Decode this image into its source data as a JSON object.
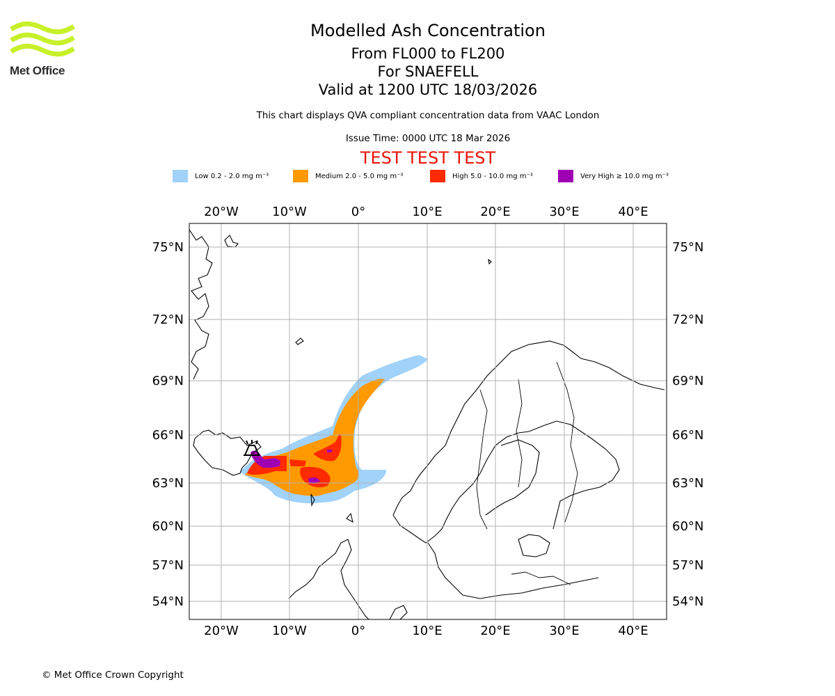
{
  "header": {
    "title": "Modelled Ash Concentration",
    "level_range": "From FL000 to FL200",
    "volcano": "For SNAEFELL",
    "valid_time": "Valid at 1200 UTC 18/03/2026",
    "subtitle": "This chart displays QVA compliant concentration data from VAAC London",
    "issue_time": "Issue Time: 0000 UTC 18 Mar 2026",
    "test_banner": "TEST TEST TEST"
  },
  "logo": {
    "text": "Met Office",
    "color": "#c8f02a"
  },
  "legend": [
    {
      "label": "Low 0.2 - 2.0 mg m⁻³",
      "color": "#a0d2fa"
    },
    {
      "label": "Medium 2.0 - 5.0 mg m⁻³",
      "color": "#ff9900"
    },
    {
      "label": "High 5.0 - 10.0 mg m⁻³",
      "color": "#ff2a00"
    },
    {
      "label": "Very High  ≥  10.0 mg m⁻³",
      "color": "#a000b4"
    }
  ],
  "map": {
    "lon_ticks": [
      "20°W",
      "10°W",
      "0°",
      "10°E",
      "20°E",
      "30°E",
      "40°E"
    ],
    "lat_ticks": [
      "75°N",
      "72°N",
      "69°N",
      "66°N",
      "63°N",
      "60°N",
      "57°N",
      "54°N"
    ]
  },
  "footer": {
    "copyright": "© Met Office Crown Copyright"
  }
}
